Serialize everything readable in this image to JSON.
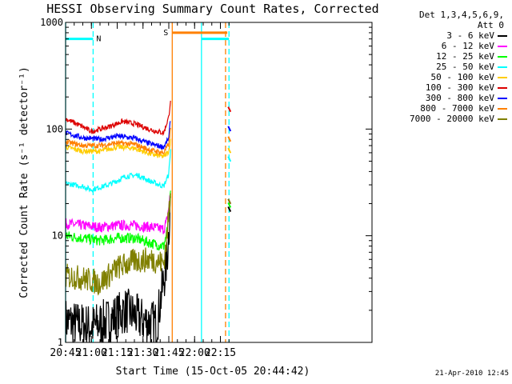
{
  "chart_data": {
    "type": "line",
    "title": "HESSI Observing Summary Count Rates, Corrected",
    "xlabel": "Start Time (15-Oct-05 20:44:42)",
    "ylabel": "Corrected Count Rate (s⁻¹ detector⁻¹)",
    "yscale": "log",
    "ylim": [
      1,
      1000
    ],
    "xlim_minutes": [
      0,
      100
    ],
    "x_ticks": [
      "20:45",
      "21:00",
      "21:15",
      "21:30",
      "21:45",
      "22:00",
      "22:15"
    ],
    "y_ticks": [
      "1",
      "10",
      "100",
      "1000"
    ],
    "legend_header": [
      "Det 1,3,4,5,6,9,",
      "Att 0"
    ],
    "series": [
      {
        "name": "3 - 6 keV",
        "color": "#000000",
        "x": [
          "20:45",
          "20:50",
          "21:00",
          "21:10",
          "21:20",
          "21:30",
          "21:38",
          "21:44",
          "21:46"
        ],
        "values": [
          1.6,
          1.5,
          1.4,
          1.6,
          2.0,
          1.6,
          1.5,
          6,
          22
        ]
      },
      {
        "name": "6 - 12 keV",
        "color": "#ff00ff",
        "x": [
          "20:45",
          "20:55",
          "21:05",
          "21:15",
          "21:25",
          "21:35",
          "21:42",
          "21:44",
          "21:46"
        ],
        "values": [
          13,
          12.5,
          12,
          12.5,
          12.5,
          12,
          11.5,
          14,
          26
        ]
      },
      {
        "name": "12 - 25 keV",
        "color": "#00ff00",
        "x": [
          "20:45",
          "20:55",
          "21:05",
          "21:15",
          "21:25",
          "21:35",
          "21:42",
          "21:44",
          "21:46"
        ],
        "values": [
          10,
          9.5,
          9,
          9.5,
          9.5,
          8.5,
          8,
          11,
          24
        ]
      },
      {
        "name": "25 - 50 keV",
        "color": "#00ffff",
        "x": [
          "20:45",
          "20:55",
          "21:00",
          "21:10",
          "21:20",
          "21:27",
          "21:35",
          "21:42",
          "21:45",
          "21:46"
        ],
        "values": [
          31,
          29,
          27,
          30,
          36,
          37,
          32,
          29,
          38,
          65
        ]
      },
      {
        "name": "50 - 100 keV",
        "color": "#ffcc00",
        "x": [
          "20:45",
          "20:55",
          "21:05",
          "21:15",
          "21:25",
          "21:35",
          "21:42",
          "21:45",
          "21:46"
        ],
        "values": [
          68,
          62,
          62,
          68,
          66,
          58,
          55,
          62,
          78
        ]
      },
      {
        "name": "100 - 300 keV",
        "color": "#dd0000",
        "x": [
          "20:45",
          "20:55",
          "21:00",
          "21:10",
          "21:18",
          "21:25",
          "21:35",
          "21:42",
          "21:45",
          "21:46"
        ],
        "values": [
          125,
          105,
          95,
          105,
          118,
          112,
          98,
          92,
          130,
          190
        ]
      },
      {
        "name": "300 - 800 keV",
        "color": "#0000ff",
        "x": [
          "20:45",
          "20:55",
          "21:05",
          "21:15",
          "21:25",
          "21:35",
          "21:42",
          "21:45",
          "21:46"
        ],
        "values": [
          92,
          83,
          80,
          86,
          82,
          72,
          68,
          82,
          125
        ]
      },
      {
        "name": "800 - 7000 keV",
        "color": "#ff8000",
        "x": [
          "20:45",
          "20:55",
          "21:05",
          "21:15",
          "21:25",
          "21:35",
          "21:42",
          "21:45",
          "21:46"
        ],
        "values": [
          76,
          70,
          70,
          74,
          72,
          63,
          60,
          72,
          100
        ]
      },
      {
        "name": "7000 - 20000 keV",
        "color": "#808000",
        "x": [
          "20:45",
          "20:55",
          "21:05",
          "21:15",
          "21:25",
          "21:35",
          "21:42",
          "21:44",
          "21:46"
        ],
        "values": [
          4.2,
          4.0,
          3.6,
          5.0,
          5.8,
          6.0,
          5.5,
          10,
          26
        ]
      }
    ],
    "markers": [
      {
        "label": "N",
        "color": "#00ffff",
        "x": [
          "20:45",
          "21:01"
        ],
        "y": 700
      },
      {
        "label": "S",
        "color": "#ff8000",
        "x": [
          "21:47",
          "22:19"
        ],
        "y": 800
      },
      {
        "label": "",
        "color": "#00ffff",
        "x": [
          "22:04",
          "22:20"
        ],
        "y": 700
      }
    ],
    "vertical_lines": [
      {
        "x": "20:45",
        "color": "#00ffff",
        "style": "solid"
      },
      {
        "x": "21:01",
        "color": "#00ffff",
        "style": "dashed"
      },
      {
        "x": "21:47",
        "color": "#ff8000",
        "style": "solid"
      },
      {
        "x": "22:04",
        "color": "#00ffff",
        "style": "solid"
      },
      {
        "x": "22:18",
        "color": "#ff8000",
        "style": "dashed"
      },
      {
        "x": "22:20",
        "color": "#00ffff",
        "style": "dashed"
      }
    ],
    "grid": false,
    "legend_position": "right"
  },
  "footer": {
    "timestamp": "21-Apr-2010 12:45"
  }
}
